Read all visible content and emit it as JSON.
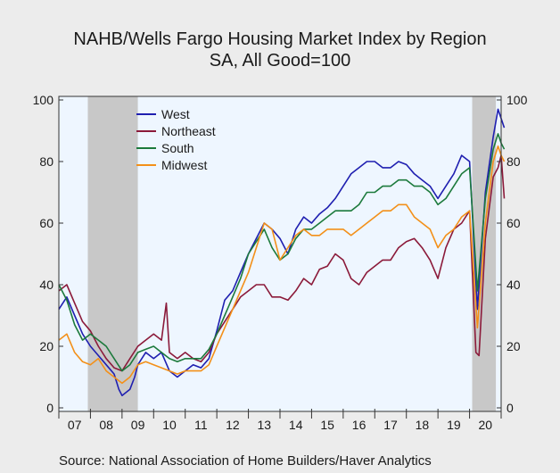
{
  "chart_data": {
    "type": "line",
    "title": "NAHB/Wells Fargo Housing Market Index by Region",
    "subtitle": "SA, All Good=100",
    "source": "Source:  National Association of Home Builders/Haver Analytics",
    "ylim": [
      0,
      100
    ],
    "yticks": [
      0,
      20,
      40,
      60,
      80,
      100
    ],
    "xlim": [
      2007,
      2021
    ],
    "xtick_labels": [
      "07",
      "08",
      "09",
      "10",
      "11",
      "12",
      "13",
      "14",
      "15",
      "16",
      "17",
      "18",
      "19",
      "20"
    ],
    "recessions": [
      [
        2007.917,
        2009.5
      ],
      [
        2020.083,
        2020.833
      ]
    ],
    "legend_position": "upper-left",
    "grid": false,
    "colors": {
      "plot_bg": "#eef6ff",
      "recession": "#c8c8c8",
      "page_bg": "#ececec"
    },
    "series": [
      {
        "name": "West",
        "color": "#1f1fb0",
        "points": [
          [
            2007.0,
            32
          ],
          [
            2007.25,
            36
          ],
          [
            2007.5,
            30
          ],
          [
            2007.75,
            24
          ],
          [
            2008.0,
            20
          ],
          [
            2008.25,
            17
          ],
          [
            2008.5,
            14
          ],
          [
            2008.75,
            11
          ],
          [
            2008.9,
            6
          ],
          [
            2009.0,
            4
          ],
          [
            2009.25,
            6
          ],
          [
            2009.4,
            10
          ],
          [
            2009.5,
            14
          ],
          [
            2009.75,
            18
          ],
          [
            2010.0,
            16
          ],
          [
            2010.25,
            18
          ],
          [
            2010.5,
            12
          ],
          [
            2010.75,
            10
          ],
          [
            2011.0,
            12
          ],
          [
            2011.25,
            14
          ],
          [
            2011.5,
            13
          ],
          [
            2011.75,
            16
          ],
          [
            2012.0,
            25
          ],
          [
            2012.25,
            35
          ],
          [
            2012.5,
            38
          ],
          [
            2012.75,
            44
          ],
          [
            2013.0,
            50
          ],
          [
            2013.25,
            55
          ],
          [
            2013.5,
            60
          ],
          [
            2013.75,
            58
          ],
          [
            2014.0,
            55
          ],
          [
            2014.25,
            50
          ],
          [
            2014.5,
            58
          ],
          [
            2014.75,
            62
          ],
          [
            2015.0,
            60
          ],
          [
            2015.25,
            63
          ],
          [
            2015.5,
            65
          ],
          [
            2015.75,
            68
          ],
          [
            2016.0,
            72
          ],
          [
            2016.25,
            76
          ],
          [
            2016.5,
            78
          ],
          [
            2016.75,
            80
          ],
          [
            2017.0,
            80
          ],
          [
            2017.25,
            78
          ],
          [
            2017.5,
            78
          ],
          [
            2017.75,
            80
          ],
          [
            2018.0,
            79
          ],
          [
            2018.25,
            76
          ],
          [
            2018.5,
            74
          ],
          [
            2018.75,
            72
          ],
          [
            2019.0,
            68
          ],
          [
            2019.25,
            72
          ],
          [
            2019.5,
            76
          ],
          [
            2019.75,
            82
          ],
          [
            2020.0,
            80
          ],
          [
            2020.25,
            32
          ],
          [
            2020.5,
            70
          ],
          [
            2020.75,
            88
          ],
          [
            2020.9,
            97
          ],
          [
            2021.0,
            94
          ],
          [
            2021.1,
            91
          ]
        ]
      },
      {
        "name": "Northeast",
        "color": "#8b1a3a",
        "points": [
          [
            2007.0,
            38
          ],
          [
            2007.25,
            40
          ],
          [
            2007.5,
            34
          ],
          [
            2007.75,
            28
          ],
          [
            2008.0,
            25
          ],
          [
            2008.25,
            20
          ],
          [
            2008.5,
            16
          ],
          [
            2008.75,
            13
          ],
          [
            2009.0,
            12
          ],
          [
            2009.25,
            16
          ],
          [
            2009.5,
            20
          ],
          [
            2009.75,
            22
          ],
          [
            2010.0,
            24
          ],
          [
            2010.25,
            22
          ],
          [
            2010.4,
            34
          ],
          [
            2010.5,
            18
          ],
          [
            2010.75,
            16
          ],
          [
            2011.0,
            18
          ],
          [
            2011.25,
            16
          ],
          [
            2011.5,
            15
          ],
          [
            2011.75,
            18
          ],
          [
            2012.0,
            24
          ],
          [
            2012.25,
            28
          ],
          [
            2012.5,
            32
          ],
          [
            2012.75,
            36
          ],
          [
            2013.0,
            38
          ],
          [
            2013.25,
            40
          ],
          [
            2013.5,
            40
          ],
          [
            2013.75,
            36
          ],
          [
            2014.0,
            36
          ],
          [
            2014.25,
            35
          ],
          [
            2014.5,
            38
          ],
          [
            2014.75,
            42
          ],
          [
            2015.0,
            40
          ],
          [
            2015.25,
            45
          ],
          [
            2015.5,
            46
          ],
          [
            2015.75,
            50
          ],
          [
            2016.0,
            48
          ],
          [
            2016.25,
            42
          ],
          [
            2016.5,
            40
          ],
          [
            2016.75,
            44
          ],
          [
            2017.0,
            46
          ],
          [
            2017.25,
            48
          ],
          [
            2017.5,
            48
          ],
          [
            2017.75,
            52
          ],
          [
            2018.0,
            54
          ],
          [
            2018.25,
            55
          ],
          [
            2018.5,
            52
          ],
          [
            2018.75,
            48
          ],
          [
            2019.0,
            42
          ],
          [
            2019.25,
            52
          ],
          [
            2019.5,
            58
          ],
          [
            2019.75,
            60
          ],
          [
            2020.0,
            64
          ],
          [
            2020.2,
            18
          ],
          [
            2020.3,
            17
          ],
          [
            2020.5,
            55
          ],
          [
            2020.75,
            75
          ],
          [
            2020.9,
            78
          ],
          [
            2021.0,
            82
          ],
          [
            2021.1,
            68
          ]
        ]
      },
      {
        "name": "South",
        "color": "#1c7a3c",
        "points": [
          [
            2007.0,
            40
          ],
          [
            2007.25,
            35
          ],
          [
            2007.5,
            27
          ],
          [
            2007.75,
            22
          ],
          [
            2008.0,
            24
          ],
          [
            2008.25,
            22
          ],
          [
            2008.5,
            20
          ],
          [
            2008.75,
            16
          ],
          [
            2009.0,
            12
          ],
          [
            2009.25,
            14
          ],
          [
            2009.5,
            18
          ],
          [
            2009.75,
            19
          ],
          [
            2010.0,
            20
          ],
          [
            2010.25,
            18
          ],
          [
            2010.5,
            16
          ],
          [
            2010.75,
            15
          ],
          [
            2011.0,
            16
          ],
          [
            2011.25,
            16
          ],
          [
            2011.5,
            16
          ],
          [
            2011.75,
            19
          ],
          [
            2012.0,
            24
          ],
          [
            2012.25,
            30
          ],
          [
            2012.5,
            36
          ],
          [
            2012.75,
            42
          ],
          [
            2013.0,
            50
          ],
          [
            2013.25,
            54
          ],
          [
            2013.5,
            58
          ],
          [
            2013.75,
            52
          ],
          [
            2014.0,
            48
          ],
          [
            2014.25,
            50
          ],
          [
            2014.5,
            55
          ],
          [
            2014.75,
            58
          ],
          [
            2015.0,
            58
          ],
          [
            2015.25,
            60
          ],
          [
            2015.5,
            62
          ],
          [
            2015.75,
            64
          ],
          [
            2016.0,
            64
          ],
          [
            2016.25,
            64
          ],
          [
            2016.5,
            66
          ],
          [
            2016.75,
            70
          ],
          [
            2017.0,
            70
          ],
          [
            2017.25,
            72
          ],
          [
            2017.5,
            72
          ],
          [
            2017.75,
            74
          ],
          [
            2018.0,
            74
          ],
          [
            2018.25,
            72
          ],
          [
            2018.5,
            72
          ],
          [
            2018.75,
            70
          ],
          [
            2019.0,
            66
          ],
          [
            2019.25,
            68
          ],
          [
            2019.5,
            72
          ],
          [
            2019.75,
            76
          ],
          [
            2020.0,
            78
          ],
          [
            2020.25,
            38
          ],
          [
            2020.5,
            68
          ],
          [
            2020.75,
            84
          ],
          [
            2020.9,
            89
          ],
          [
            2021.0,
            86
          ],
          [
            2021.1,
            84
          ]
        ]
      },
      {
        "name": "Midwest",
        "color": "#f39019",
        "points": [
          [
            2007.0,
            22
          ],
          [
            2007.25,
            24
          ],
          [
            2007.5,
            18
          ],
          [
            2007.75,
            15
          ],
          [
            2008.0,
            14
          ],
          [
            2008.25,
            16
          ],
          [
            2008.5,
            12
          ],
          [
            2008.75,
            10
          ],
          [
            2009.0,
            8
          ],
          [
            2009.25,
            10
          ],
          [
            2009.5,
            14
          ],
          [
            2009.75,
            15
          ],
          [
            2010.0,
            14
          ],
          [
            2010.25,
            13
          ],
          [
            2010.5,
            12
          ],
          [
            2010.75,
            11
          ],
          [
            2011.0,
            12
          ],
          [
            2011.25,
            12
          ],
          [
            2011.5,
            12
          ],
          [
            2011.75,
            14
          ],
          [
            2012.0,
            20
          ],
          [
            2012.25,
            26
          ],
          [
            2012.5,
            32
          ],
          [
            2012.75,
            38
          ],
          [
            2013.0,
            44
          ],
          [
            2013.25,
            52
          ],
          [
            2013.5,
            60
          ],
          [
            2013.75,
            58
          ],
          [
            2014.0,
            48
          ],
          [
            2014.25,
            52
          ],
          [
            2014.5,
            56
          ],
          [
            2014.75,
            58
          ],
          [
            2015.0,
            56
          ],
          [
            2015.25,
            56
          ],
          [
            2015.5,
            58
          ],
          [
            2015.75,
            58
          ],
          [
            2016.0,
            58
          ],
          [
            2016.25,
            56
          ],
          [
            2016.5,
            58
          ],
          [
            2016.75,
            60
          ],
          [
            2017.0,
            62
          ],
          [
            2017.25,
            64
          ],
          [
            2017.5,
            64
          ],
          [
            2017.75,
            66
          ],
          [
            2018.0,
            66
          ],
          [
            2018.25,
            62
          ],
          [
            2018.5,
            60
          ],
          [
            2018.75,
            58
          ],
          [
            2019.0,
            52
          ],
          [
            2019.25,
            56
          ],
          [
            2019.5,
            58
          ],
          [
            2019.75,
            62
          ],
          [
            2020.0,
            64
          ],
          [
            2020.25,
            26
          ],
          [
            2020.5,
            60
          ],
          [
            2020.75,
            80
          ],
          [
            2020.9,
            85
          ],
          [
            2021.0,
            82
          ],
          [
            2021.1,
            80
          ]
        ]
      }
    ]
  }
}
